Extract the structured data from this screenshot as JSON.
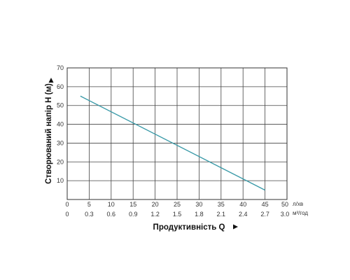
{
  "chart_data": {
    "type": "line",
    "ylabel": "Створюваний напір H (м)",
    "xlabel": "Продуктивність Q",
    "x_unit_primary": "л/хв",
    "x_unit_secondary": "м³/год",
    "xlim": [
      0,
      50
    ],
    "ylim": [
      0,
      70
    ],
    "x_ticks": [
      "0",
      "5",
      "10",
      "15",
      "20",
      "25",
      "30",
      "35",
      "40",
      "45",
      "50"
    ],
    "x_ticks_secondary": [
      "0",
      "0.3",
      "0.6",
      "0.9",
      "1.2",
      "1.5",
      "1.8",
      "2.1",
      "2.4",
      "2.7",
      "3.0"
    ],
    "y_ticks": [
      "10",
      "20",
      "30",
      "40",
      "50",
      "60",
      "70"
    ],
    "grid": true,
    "series": [
      {
        "color": "#3a9aa8",
        "x": [
          3,
          45
        ],
        "y": [
          55,
          5
        ]
      }
    ]
  }
}
